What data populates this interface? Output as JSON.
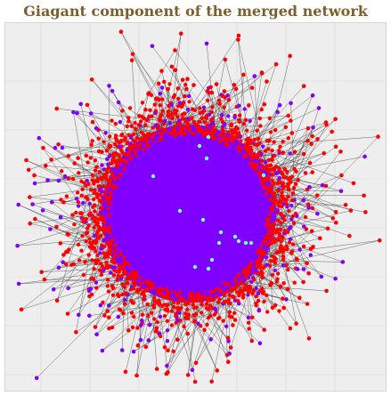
{
  "figure": {
    "title": "Giagant component of the merged network"
  },
  "colors": {
    "title": "#7f5e2b",
    "panel_background": "#eeeeee",
    "grid": "#dcdcdc",
    "edge": "#3a3a3a",
    "node_red": "#ff0000",
    "node_purple": "#7f00ff",
    "node_cyan": "#7fffd4"
  },
  "network": {
    "node_groups": [
      "node_red",
      "node_purple",
      "node_cyan"
    ],
    "layout": "force-directed",
    "grid": true
  }
}
